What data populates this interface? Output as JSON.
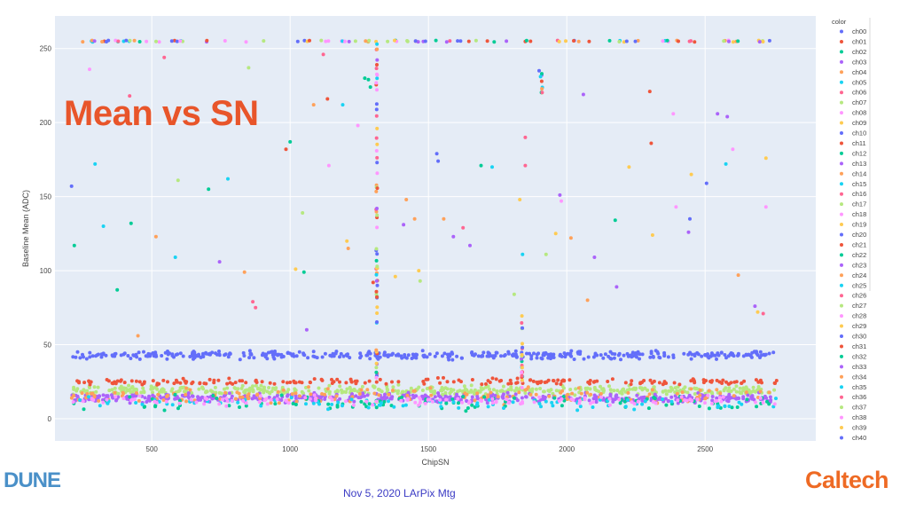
{
  "slide": {
    "title": "Mean vs SN",
    "footer": "Nov 5, 2020 LArPix Mtg",
    "logo_left": "DUNE",
    "logo_right": "Caltech"
  },
  "chart_data": {
    "type": "scatter",
    "xlabel": "ChipSN",
    "ylabel": "Baseline Mean (ADC)",
    "xlim": [
      150,
      2900
    ],
    "ylim": [
      -15,
      272
    ],
    "xticks": [
      500,
      1000,
      1500,
      2000,
      2500
    ],
    "yticks": [
      0,
      50,
      100,
      150,
      200,
      250
    ],
    "grid": true,
    "legend_title": "color",
    "legend_position": "right",
    "series": [
      {
        "name": "ch00",
        "color": "#636efa"
      },
      {
        "name": "ch01",
        "color": "#ef553b"
      },
      {
        "name": "ch02",
        "color": "#00cc96"
      },
      {
        "name": "ch03",
        "color": "#ab63fa"
      },
      {
        "name": "ch04",
        "color": "#ffa15a"
      },
      {
        "name": "ch05",
        "color": "#19d3f3"
      },
      {
        "name": "ch06",
        "color": "#ff6692"
      },
      {
        "name": "ch07",
        "color": "#b6e880"
      },
      {
        "name": "ch08",
        "color": "#ff97ff"
      },
      {
        "name": "ch09",
        "color": "#fecb52"
      },
      {
        "name": "ch10",
        "color": "#636efa"
      },
      {
        "name": "ch11",
        "color": "#ef553b"
      },
      {
        "name": "ch12",
        "color": "#00cc96"
      },
      {
        "name": "ch13",
        "color": "#ab63fa"
      },
      {
        "name": "ch14",
        "color": "#ffa15a"
      },
      {
        "name": "ch15",
        "color": "#19d3f3"
      },
      {
        "name": "ch16",
        "color": "#ff6692"
      },
      {
        "name": "ch17",
        "color": "#b6e880"
      },
      {
        "name": "ch18",
        "color": "#ff97ff"
      },
      {
        "name": "ch19",
        "color": "#fecb52"
      },
      {
        "name": "ch20",
        "color": "#636efa"
      },
      {
        "name": "ch21",
        "color": "#ef553b"
      },
      {
        "name": "ch22",
        "color": "#00cc96"
      },
      {
        "name": "ch23",
        "color": "#ab63fa"
      },
      {
        "name": "ch24",
        "color": "#ffa15a"
      },
      {
        "name": "ch25",
        "color": "#19d3f3"
      },
      {
        "name": "ch26",
        "color": "#ff6692"
      },
      {
        "name": "ch27",
        "color": "#b6e880"
      },
      {
        "name": "ch28",
        "color": "#ff97ff"
      },
      {
        "name": "ch29",
        "color": "#fecb52"
      },
      {
        "name": "ch30",
        "color": "#636efa"
      },
      {
        "name": "ch31",
        "color": "#ef553b"
      },
      {
        "name": "ch32",
        "color": "#00cc96"
      },
      {
        "name": "ch33",
        "color": "#ab63fa"
      },
      {
        "name": "ch34",
        "color": "#ffa15a"
      },
      {
        "name": "ch35",
        "color": "#19d3f3"
      },
      {
        "name": "ch36",
        "color": "#ff6692"
      },
      {
        "name": "ch37",
        "color": "#b6e880"
      },
      {
        "name": "ch38",
        "color": "#ff97ff"
      },
      {
        "name": "ch39",
        "color": "#fecb52"
      },
      {
        "name": "ch40",
        "color": "#636efa"
      }
    ],
    "clusters": [
      {
        "series": "ch00",
        "x_range": [
          210,
          2760
        ],
        "y_center": 43,
        "y_spread": 2.5,
        "count": 420
      },
      {
        "series": "ch07",
        "x_range": [
          210,
          2760
        ],
        "y_center": 19,
        "y_spread": 3,
        "count": 450
      },
      {
        "series": "ch01",
        "x_range": [
          210,
          2760
        ],
        "y_center": 25,
        "y_spread": 2,
        "count": 200
      },
      {
        "series": "ch03",
        "x_range": [
          210,
          2760
        ],
        "y_center": 14,
        "y_spread": 3,
        "count": 500
      },
      {
        "series": "ch04",
        "x_range": [
          210,
          2760
        ],
        "y_center": 16,
        "y_spread": 5,
        "count": 150
      },
      {
        "series": "ch02",
        "x_range": [
          210,
          2760
        ],
        "y_center": 11,
        "y_spread": 5,
        "count": 100
      },
      {
        "series": "ch05",
        "x_range": [
          210,
          2760
        ],
        "y_center": 10,
        "y_spread": 4,
        "count": 90
      },
      {
        "series": "ch08",
        "x_range": [
          210,
          2760
        ],
        "y_center": 12,
        "y_spread": 3,
        "count": 120
      }
    ],
    "saturated": {
      "y": 255,
      "x_min": 250,
      "x_max": 2760,
      "count": 110
    },
    "outliers": [
      [
        210,
        157,
        "ch00"
      ],
      [
        220,
        117,
        "ch02"
      ],
      [
        275,
        236,
        "ch08"
      ],
      [
        295,
        172,
        "ch05"
      ],
      [
        325,
        130,
        "ch05"
      ],
      [
        375,
        87,
        "ch02"
      ],
      [
        420,
        218,
        "ch06"
      ],
      [
        425,
        132,
        "ch02"
      ],
      [
        450,
        56,
        "ch04"
      ],
      [
        515,
        123,
        "ch04"
      ],
      [
        545,
        244,
        "ch06"
      ],
      [
        585,
        109,
        "ch05"
      ],
      [
        595,
        161,
        "ch07"
      ],
      [
        705,
        155,
        "ch02"
      ],
      [
        745,
        106,
        "ch03"
      ],
      [
        775,
        162,
        "ch05"
      ],
      [
        835,
        99,
        "ch04"
      ],
      [
        850,
        237,
        "ch07"
      ],
      [
        865,
        79,
        "ch06"
      ],
      [
        875,
        75,
        "ch06"
      ],
      [
        985,
        182,
        "ch01"
      ],
      [
        1000,
        187,
        "ch02"
      ],
      [
        1020,
        101,
        "ch09"
      ],
      [
        1045,
        139,
        "ch07"
      ],
      [
        1050,
        99,
        "ch02"
      ],
      [
        1060,
        60,
        "ch03"
      ],
      [
        1085,
        212,
        "ch04"
      ],
      [
        1120,
        246,
        "ch06"
      ],
      [
        1135,
        216,
        "ch01"
      ],
      [
        1140,
        171,
        "ch08"
      ],
      [
        1190,
        212,
        "ch05"
      ],
      [
        1205,
        120,
        "ch09"
      ],
      [
        1210,
        115,
        "ch04"
      ],
      [
        1245,
        198,
        "ch08"
      ],
      [
        1270,
        230,
        "ch02"
      ],
      [
        1283,
        229,
        "ch02"
      ],
      [
        1290,
        224,
        "ch02"
      ],
      [
        1300,
        92,
        "ch01"
      ],
      [
        1420,
        148,
        "ch04"
      ],
      [
        1450,
        135,
        "ch04"
      ],
      [
        1465,
        100,
        "ch09"
      ],
      [
        1470,
        93,
        "ch07"
      ],
      [
        1530,
        179,
        "ch00"
      ],
      [
        1535,
        174,
        "ch00"
      ],
      [
        1555,
        135,
        "ch04"
      ],
      [
        1590,
        123,
        "ch03"
      ],
      [
        1625,
        129,
        "ch06"
      ],
      [
        1650,
        117,
        "ch03"
      ],
      [
        1690,
        171,
        "ch02"
      ],
      [
        1730,
        170,
        "ch05"
      ],
      [
        1810,
        84,
        "ch07"
      ],
      [
        1830,
        148,
        "ch09"
      ],
      [
        1840,
        111,
        "ch05"
      ],
      [
        1850,
        190,
        "ch06"
      ],
      [
        1850,
        171,
        "ch06"
      ],
      [
        1900,
        235,
        "ch00"
      ],
      [
        1905,
        231,
        "ch05"
      ],
      [
        1925,
        111,
        "ch07"
      ],
      [
        1960,
        125,
        "ch09"
      ],
      [
        1975,
        151,
        "ch03"
      ],
      [
        1980,
        147,
        "ch08"
      ],
      [
        2015,
        122,
        "ch04"
      ],
      [
        2060,
        219,
        "ch03"
      ],
      [
        2075,
        80,
        "ch04"
      ],
      [
        2100,
        109,
        "ch03"
      ],
      [
        2175,
        134,
        "ch02"
      ],
      [
        2180,
        89,
        "ch03"
      ],
      [
        2225,
        170,
        "ch09"
      ],
      [
        2300,
        221,
        "ch01"
      ],
      [
        2305,
        186,
        "ch01"
      ],
      [
        2310,
        124,
        "ch09"
      ],
      [
        2385,
        206,
        "ch08"
      ],
      [
        2395,
        143,
        "ch08"
      ],
      [
        2440,
        126,
        "ch03"
      ],
      [
        2445,
        135,
        "ch00"
      ],
      [
        2450,
        165,
        "ch09"
      ],
      [
        2505,
        159,
        "ch00"
      ],
      [
        2545,
        206,
        "ch03"
      ],
      [
        2575,
        172,
        "ch05"
      ],
      [
        2580,
        204,
        "ch03"
      ],
      [
        2600,
        182,
        "ch08"
      ],
      [
        2620,
        97,
        "ch04"
      ],
      [
        2680,
        76,
        "ch03"
      ],
      [
        2720,
        176,
        "ch09"
      ],
      [
        2720,
        143,
        "ch08"
      ],
      [
        2710,
        71,
        "ch06"
      ],
      [
        2690,
        72,
        "ch09"
      ],
      [
        1380,
        96,
        "ch09"
      ],
      [
        1410,
        131,
        "ch03"
      ]
    ],
    "vertical_streaks": [
      {
        "x": 1313,
        "y_min": 0,
        "y_max": 255,
        "count": 70
      },
      {
        "x": 1838,
        "y_min": 20,
        "y_max": 71,
        "count": 25
      },
      {
        "x": 1910,
        "y_min": 220,
        "y_max": 235,
        "count": 8
      }
    ]
  }
}
